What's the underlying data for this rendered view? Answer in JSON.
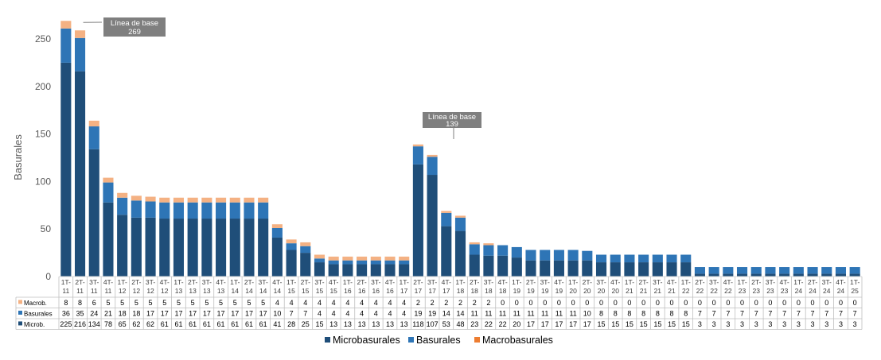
{
  "chart_data": {
    "type": "bar",
    "stacked": true,
    "ylabel": "Basurales",
    "xlabel": "",
    "title": "",
    "ylim": [
      0,
      275
    ],
    "yticks": [
      0,
      50,
      100,
      150,
      200,
      250
    ],
    "grid": false,
    "legend_position": "bottom",
    "categories": [
      [
        "1T-",
        "11"
      ],
      [
        "2T-",
        "11"
      ],
      [
        "3T-",
        "11"
      ],
      [
        "4T-",
        "11"
      ],
      [
        "1T-",
        "12"
      ],
      [
        "2T-",
        "12"
      ],
      [
        "3T-",
        "12"
      ],
      [
        "4T-",
        "12"
      ],
      [
        "1T-",
        "13"
      ],
      [
        "2T-",
        "13"
      ],
      [
        "3T-",
        "13"
      ],
      [
        "4T-",
        "13"
      ],
      [
        "1T-",
        "14"
      ],
      [
        "2T-",
        "14"
      ],
      [
        "3T-",
        "14"
      ],
      [
        "4T-",
        "14"
      ],
      [
        "1T-",
        "15"
      ],
      [
        "2T-",
        "15"
      ],
      [
        "3T-",
        "15"
      ],
      [
        "4T-",
        "15"
      ],
      [
        "1T-",
        "16"
      ],
      [
        "2T-",
        "16"
      ],
      [
        "3T-",
        "16"
      ],
      [
        "4T-",
        "16"
      ],
      [
        "1T-",
        "17"
      ],
      [
        "2T-",
        "17"
      ],
      [
        "3T-",
        "17"
      ],
      [
        "4T-",
        "17"
      ],
      [
        "1T-",
        "18"
      ],
      [
        "2T-",
        "18"
      ],
      [
        "3T-",
        "18"
      ],
      [
        "4T-",
        "18"
      ],
      [
        "1T-",
        "19"
      ],
      [
        "2T-",
        "19"
      ],
      [
        "3T-",
        "19"
      ],
      [
        "4T-",
        "19"
      ],
      [
        "1T-",
        "20"
      ],
      [
        "2T-",
        "20"
      ],
      [
        "3T-",
        "20"
      ],
      [
        "4T-",
        "20"
      ],
      [
        "1T-",
        "21"
      ],
      [
        "2T-",
        "21"
      ],
      [
        "3T-",
        "21"
      ],
      [
        "4T-",
        "21"
      ],
      [
        "1T-",
        "22"
      ],
      [
        "2T-",
        "22"
      ],
      [
        "3T-",
        "22"
      ],
      [
        "4T-",
        "22"
      ],
      [
        "1T-",
        "23"
      ],
      [
        "2T-",
        "23"
      ],
      [
        "3T-",
        "23"
      ],
      [
        "4T-",
        "23"
      ],
      [
        "1T-",
        "24"
      ],
      [
        "2T-",
        "24"
      ],
      [
        "3T-",
        "24"
      ],
      [
        "4T-",
        "24"
      ],
      [
        "1T-",
        "25"
      ]
    ],
    "series": [
      {
        "name": "Microbasurales",
        "table_label": "Microb.",
        "color": "#1F4E79",
        "values": [
          225,
          216,
          134,
          78,
          65,
          62,
          62,
          61,
          61,
          61,
          61,
          61,
          61,
          61,
          61,
          41,
          28,
          25,
          15,
          13,
          13,
          13,
          13,
          13,
          13,
          118,
          107,
          53,
          48,
          23,
          22,
          22,
          20,
          17,
          17,
          17,
          17,
          17,
          15,
          15,
          15,
          15,
          15,
          15,
          15,
          3,
          3,
          3,
          3,
          3,
          3,
          3,
          3,
          3,
          3,
          3,
          3
        ]
      },
      {
        "name": "Basurales",
        "table_label": "Basurales",
        "color": "#2E75B6",
        "values": [
          36,
          35,
          24,
          21,
          18,
          18,
          17,
          17,
          17,
          17,
          17,
          17,
          17,
          17,
          17,
          10,
          7,
          7,
          4,
          4,
          4,
          4,
          4,
          4,
          4,
          19,
          19,
          14,
          14,
          11,
          11,
          11,
          11,
          11,
          11,
          11,
          11,
          10,
          8,
          8,
          8,
          8,
          8,
          8,
          8,
          7,
          7,
          7,
          7,
          7,
          7,
          7,
          7,
          7,
          7,
          7,
          7
        ]
      },
      {
        "name": "Macrobasurales",
        "table_label": "Macrob.",
        "color": "#F4B183",
        "legend_color": "#ED7D31",
        "values": [
          8,
          8,
          6,
          5,
          5,
          5,
          5,
          5,
          5,
          5,
          5,
          5,
          5,
          5,
          5,
          4,
          4,
          4,
          4,
          4,
          4,
          4,
          4,
          4,
          4,
          2,
          2,
          2,
          2,
          2,
          2,
          0,
          0,
          0,
          0,
          0,
          0,
          0,
          0,
          0,
          0,
          0,
          0,
          0,
          0,
          0,
          0,
          0,
          0,
          0,
          0,
          0,
          0,
          0,
          0,
          0,
          0
        ]
      }
    ],
    "annotations": [
      {
        "line1": "Línea de base",
        "line2": "269",
        "category_index": 1,
        "value": 269
      },
      {
        "line1": "Línea de base",
        "line2": "139",
        "category_index": 25,
        "value": 139
      }
    ]
  }
}
